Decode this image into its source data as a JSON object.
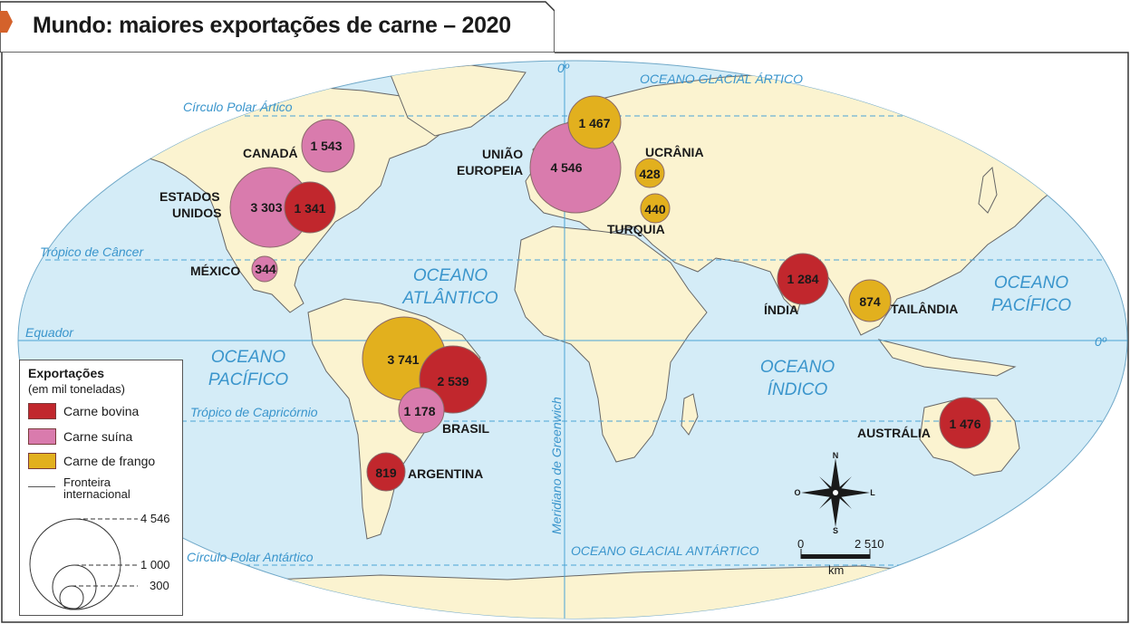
{
  "title": "Mundo: maiores exportações de carne – 2020",
  "colors": {
    "ocean": "#d4ecf7",
    "land": "#fbf3d0",
    "lines": "#4aa3d6",
    "bovina": "#c1272d",
    "suina": "#d97bad",
    "frango": "#e2b01e",
    "tab_marker": "#d4622b"
  },
  "map_labels": {
    "meridian_top": "0º",
    "equator_right": "0º",
    "arctic_ocean": "OCEANO GLACIAL ÁRTICO",
    "antarctic_ocean": "OCEANO GLACIAL ANTÁRTICO",
    "arctic_circle": "Círculo Polar Ártico",
    "antarctic_circle": "Círculo Polar Antártico",
    "tropic_cancer": "Trópico de Câncer",
    "tropic_capricorn": "Trópico de Capricórnio",
    "equator": "Equador",
    "greenwich": "Meridiano de Greenwich",
    "atlantic_1": "OCEANO",
    "atlantic_2": "ATLÂNTICO",
    "pacific_w_1": "OCEANO",
    "pacific_w_2": "PACÍFICO",
    "pacific_e_1": "OCEANO",
    "pacific_e_2": "PACÍFICO",
    "indian_1": "OCEANO",
    "indian_2": "ÍNDICO"
  },
  "exporters": [
    {
      "country": "CANADÁ",
      "product": "suina",
      "value": "1 543"
    },
    {
      "country": "ESTADOS UNIDOS",
      "product": "suina",
      "value": "3 303"
    },
    {
      "country": "ESTADOS UNIDOS",
      "product": "bovina",
      "value": "1 341"
    },
    {
      "country": "MÉXICO",
      "product": "suina",
      "value": "344"
    },
    {
      "country": "BRASIL",
      "product": "frango",
      "value": "3 741"
    },
    {
      "country": "BRASIL",
      "product": "bovina",
      "value": "2 539"
    },
    {
      "country": "BRASIL",
      "product": "suina",
      "value": "1 178"
    },
    {
      "country": "ARGENTINA",
      "product": "bovina",
      "value": "819"
    },
    {
      "country": "UNIÃO EUROPEIA",
      "product": "suina",
      "value": "4 546"
    },
    {
      "country": "UNIÃO EUROPEIA",
      "product": "frango",
      "value": "1 467"
    },
    {
      "country": "UCRÂNIA",
      "product": "frango",
      "value": "428"
    },
    {
      "country": "TURQUIA",
      "product": "frango",
      "value": "440"
    },
    {
      "country": "ÍNDIA",
      "product": "bovina",
      "value": "1 284"
    },
    {
      "country": "TAILÂNDIA",
      "product": "frango",
      "value": "874"
    },
    {
      "country": "AUSTRÁLIA",
      "product": "bovina",
      "value": "1 476"
    }
  ],
  "country_labels": {
    "canada": "CANADÁ",
    "usa_1": "ESTADOS",
    "usa_2": "UNIDOS",
    "mexico": "MÉXICO",
    "brazil": "BRASIL",
    "argentina": "ARGENTINA",
    "eu_1": "UNIÃO",
    "eu_2": "EUROPEIA",
    "ukraine": "UCRÂNIA",
    "turkey": "TURQUIA",
    "india": "ÍNDIA",
    "thailand": "TAILÂNDIA",
    "australia": "AUSTRÁLIA"
  },
  "compass": {
    "n": "N",
    "s": "S",
    "l": "L",
    "o": "O"
  },
  "scale": {
    "start": "0",
    "end": "2 510",
    "unit": "km"
  },
  "legend": {
    "title": "Exportações",
    "subtitle": "(em mil toneladas)",
    "items": [
      "Carne bovina",
      "Carne suína",
      "Carne de frango"
    ],
    "border_label_1": "Fronteira",
    "border_label_2": "internacional",
    "size_values": [
      "4 546",
      "1 000",
      "300"
    ]
  }
}
